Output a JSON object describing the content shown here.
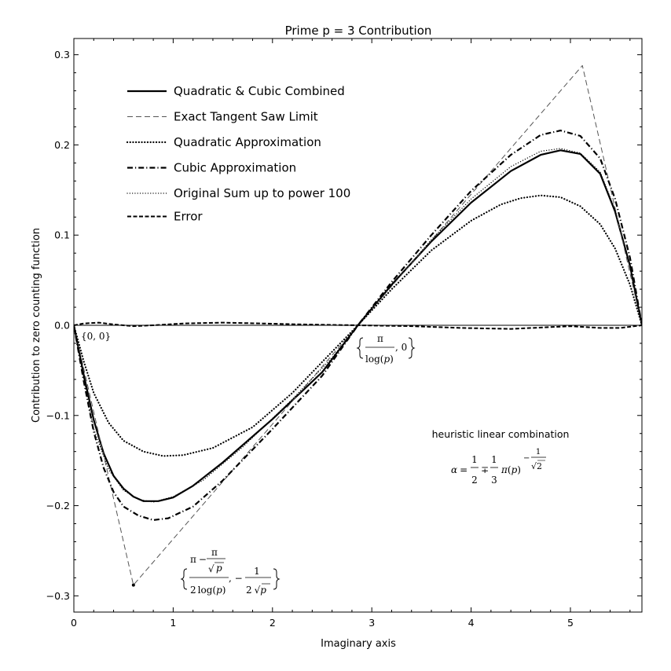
{
  "chart_data": {
    "type": "line",
    "title": "Prime p = 3 Contribution",
    "xlabel": "Imaginary axis",
    "ylabel": "Contribution to zero counting function",
    "xlim": [
      0,
      5.72
    ],
    "ylim": [
      -0.318,
      0.318
    ],
    "x_ticks": [
      0,
      1,
      2,
      3,
      4,
      5
    ],
    "x_tick_labels": [
      "0",
      "1",
      "2",
      "3",
      "4",
      "5"
    ],
    "y_ticks": [
      -0.3,
      -0.2,
      -0.1,
      0.0,
      0.1,
      0.2,
      0.3
    ],
    "y_tick_labels": [
      "−0.3",
      "−0.2",
      "−0.1",
      "0.0",
      "0.1",
      "0.2",
      "0.3"
    ],
    "grid": false,
    "legend_placement": "upper-left",
    "series": [
      {
        "name": "Quadratic & Cubic Combined",
        "style": "solid-thick",
        "color": "#000000",
        "points": [
          [
            0,
            0
          ],
          [
            0.1,
            -0.055
          ],
          [
            0.2,
            -0.105
          ],
          [
            0.3,
            -0.142
          ],
          [
            0.4,
            -0.167
          ],
          [
            0.5,
            -0.181
          ],
          [
            0.6,
            -0.19
          ],
          [
            0.7,
            -0.195
          ],
          [
            0.85,
            -0.195
          ],
          [
            1.0,
            -0.191
          ],
          [
            1.2,
            -0.178
          ],
          [
            1.5,
            -0.152
          ],
          [
            2.0,
            -0.104
          ],
          [
            2.5,
            -0.052
          ],
          [
            2.86,
            0.0
          ],
          [
            3.2,
            0.045
          ],
          [
            3.6,
            0.093
          ],
          [
            4.0,
            0.136
          ],
          [
            4.4,
            0.171
          ],
          [
            4.7,
            0.189
          ],
          [
            4.9,
            0.194
          ],
          [
            5.1,
            0.19
          ],
          [
            5.3,
            0.168
          ],
          [
            5.45,
            0.126
          ],
          [
            5.6,
            0.066
          ],
          [
            5.72,
            0.0
          ]
        ]
      },
      {
        "name": "Exact Tangent Saw Limit",
        "style": "long-dash",
        "color": "#555555",
        "points": [
          [
            0,
            0
          ],
          [
            0.6,
            -0.288
          ],
          [
            2.86,
            0.0
          ],
          [
            5.12,
            0.288
          ],
          [
            5.72,
            0.0
          ]
        ]
      },
      {
        "name": "Quadratic Approximation",
        "style": "dotted-bold",
        "color": "#000000",
        "points": [
          [
            0,
            0
          ],
          [
            0.1,
            -0.04
          ],
          [
            0.2,
            -0.075
          ],
          [
            0.35,
            -0.108
          ],
          [
            0.5,
            -0.128
          ],
          [
            0.7,
            -0.14
          ],
          [
            0.9,
            -0.145
          ],
          [
            1.1,
            -0.144
          ],
          [
            1.4,
            -0.136
          ],
          [
            1.8,
            -0.113
          ],
          [
            2.2,
            -0.075
          ],
          [
            2.55,
            -0.035
          ],
          [
            2.86,
            0.0
          ],
          [
            3.2,
            0.04
          ],
          [
            3.6,
            0.083
          ],
          [
            4.0,
            0.116
          ],
          [
            4.3,
            0.134
          ],
          [
            4.5,
            0.141
          ],
          [
            4.7,
            0.144
          ],
          [
            4.9,
            0.142
          ],
          [
            5.1,
            0.132
          ],
          [
            5.3,
            0.112
          ],
          [
            5.45,
            0.085
          ],
          [
            5.6,
            0.045
          ],
          [
            5.72,
            0.0
          ]
        ]
      },
      {
        "name": "Cubic Approximation",
        "style": "dash-dot",
        "color": "#000000",
        "points": [
          [
            0,
            0
          ],
          [
            0.1,
            -0.062
          ],
          [
            0.2,
            -0.118
          ],
          [
            0.3,
            -0.158
          ],
          [
            0.4,
            -0.185
          ],
          [
            0.5,
            -0.201
          ],
          [
            0.65,
            -0.211
          ],
          [
            0.8,
            -0.216
          ],
          [
            0.95,
            -0.214
          ],
          [
            1.2,
            -0.201
          ],
          [
            1.5,
            -0.172
          ],
          [
            2.0,
            -0.115
          ],
          [
            2.5,
            -0.056
          ],
          [
            2.86,
            0.0
          ],
          [
            3.2,
            0.048
          ],
          [
            3.6,
            0.1
          ],
          [
            4.0,
            0.149
          ],
          [
            4.4,
            0.189
          ],
          [
            4.7,
            0.211
          ],
          [
            4.9,
            0.216
          ],
          [
            5.1,
            0.21
          ],
          [
            5.3,
            0.185
          ],
          [
            5.45,
            0.14
          ],
          [
            5.6,
            0.075
          ],
          [
            5.72,
            0.0
          ]
        ]
      },
      {
        "name": "Original Sum up to power 100",
        "style": "dotted-fine",
        "color": "#000000",
        "points": [
          [
            0,
            0
          ],
          [
            0.1,
            -0.06
          ],
          [
            0.2,
            -0.115
          ],
          [
            0.35,
            -0.16
          ],
          [
            0.5,
            -0.183
          ],
          [
            0.65,
            -0.193
          ],
          [
            0.8,
            -0.196
          ],
          [
            1.0,
            -0.19
          ],
          [
            1.3,
            -0.172
          ],
          [
            1.7,
            -0.135
          ],
          [
            2.2,
            -0.082
          ],
          [
            2.6,
            -0.036
          ],
          [
            2.86,
            0.0
          ],
          [
            3.2,
            0.044
          ],
          [
            3.6,
            0.095
          ],
          [
            4.0,
            0.14
          ],
          [
            4.4,
            0.176
          ],
          [
            4.7,
            0.193
          ],
          [
            4.9,
            0.196
          ],
          [
            5.1,
            0.191
          ],
          [
            5.3,
            0.17
          ],
          [
            5.45,
            0.128
          ],
          [
            5.6,
            0.066
          ],
          [
            5.72,
            0.0
          ]
        ]
      },
      {
        "name": "Error",
        "style": "short-dash",
        "color": "#000000",
        "points": [
          [
            0,
            0
          ],
          [
            0.1,
            0.002
          ],
          [
            0.25,
            0.003
          ],
          [
            0.4,
            0.001
          ],
          [
            0.6,
            -0.001
          ],
          [
            0.8,
            0.0
          ],
          [
            1.1,
            0.002
          ],
          [
            1.5,
            0.003
          ],
          [
            1.9,
            0.002
          ],
          [
            2.3,
            0.001
          ],
          [
            2.86,
            0.0
          ],
          [
            3.4,
            -0.001
          ],
          [
            3.9,
            -0.003
          ],
          [
            4.4,
            -0.004
          ],
          [
            4.8,
            -0.002
          ],
          [
            5.0,
            -0.001
          ],
          [
            5.3,
            -0.003
          ],
          [
            5.5,
            -0.003
          ],
          [
            5.72,
            0.0
          ]
        ]
      }
    ],
    "reference_line_y": 0,
    "annotations": {
      "origin_label": "{0, 0}",
      "zero_label": {
        "pi": "π",
        "log": "log(",
        "p": "p",
        "close": ")",
        "tail": ", 0"
      },
      "min_label": {
        "pi": "π",
        "minus": "−",
        "p": "p",
        "two": "2",
        "log": "log(",
        "close": ")",
        "comma_minus": ", −",
        "one": "1",
        "sqrt": "√"
      },
      "heuristic_title": "heuristic linear combination",
      "alpha_formula": {
        "alpha": "α",
        "eq": "=",
        "one": "1",
        "two": "2",
        "three": "3",
        "mp": "∓",
        "pi": "π",
        "p": "p",
        "minus": "−",
        "sqrt": "√"
      },
      "min_marker": [
        0.6,
        -0.288
      ]
    }
  }
}
